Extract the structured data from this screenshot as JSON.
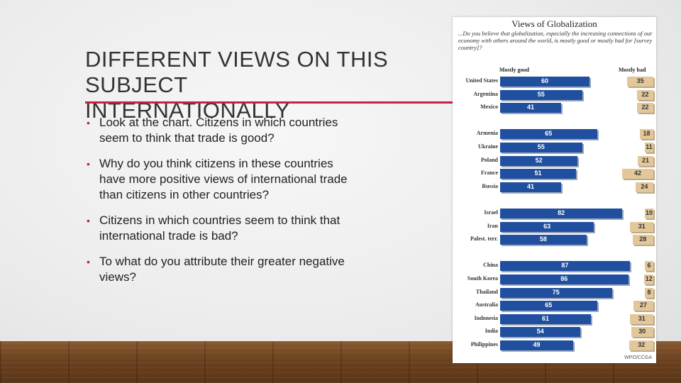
{
  "slide": {
    "title": "DIFFERENT VIEWS ON THIS SUBJECT\nINTERNATIONALLY",
    "bullets": [
      "Look at the chart. Citizens in which countries seem to think that trade is good?",
      "Why do you think citizens in these countries have more positive views of international trade than citizens in other countries?",
      "Citizens in which countries seem to think that international trade is bad?",
      "To what do you attribute their greater negative views?"
    ],
    "accent_color": "#c5223b"
  },
  "chart_data": {
    "type": "bar",
    "title": "Views of Globalization",
    "subtitle": "...Do you believe that globalization, especially the increasing connections of our economy with others around the world, is mostly good or mostly bad for [survey country]?",
    "credit": "WPO/CCGA",
    "series": [
      {
        "name": "Mostly good",
        "color": "#1f4f9e"
      },
      {
        "name": "Mostly bad",
        "color": "#e3c79a"
      }
    ],
    "rows": [
      {
        "country": "United States",
        "good": 60,
        "bad": 35,
        "group": 0
      },
      {
        "country": "Argentina",
        "good": 55,
        "bad": 22,
        "group": 0
      },
      {
        "country": "Mexico",
        "good": 41,
        "bad": 22,
        "group": 0
      },
      {
        "country": "Armenia",
        "good": 65,
        "bad": 18,
        "group": 1
      },
      {
        "country": "Ukraine",
        "good": 55,
        "bad": 11,
        "group": 1
      },
      {
        "country": "Poland",
        "good": 52,
        "bad": 21,
        "group": 1
      },
      {
        "country": "France",
        "good": 51,
        "bad": 42,
        "group": 1
      },
      {
        "country": "Russia",
        "good": 41,
        "bad": 24,
        "group": 1
      },
      {
        "country": "Israel",
        "good": 82,
        "bad": 10,
        "group": 2
      },
      {
        "country": "Iran",
        "good": 63,
        "bad": 31,
        "group": 2
      },
      {
        "country": "Palest. terr.",
        "good": 58,
        "bad": 28,
        "group": 2
      },
      {
        "country": "China",
        "good": 87,
        "bad": 6,
        "group": 3
      },
      {
        "country": "South Korea",
        "good": 86,
        "bad": 12,
        "group": 3
      },
      {
        "country": "Thailand",
        "good": 75,
        "bad": 8,
        "group": 3
      },
      {
        "country": "Australia",
        "good": 65,
        "bad": 27,
        "group": 3
      },
      {
        "country": "Indonesia",
        "good": 61,
        "bad": 31,
        "group": 3
      },
      {
        "country": "India",
        "good": 54,
        "bad": 30,
        "group": 3
      },
      {
        "country": "Philippines",
        "good": 49,
        "bad": 32,
        "group": 3
      }
    ]
  }
}
